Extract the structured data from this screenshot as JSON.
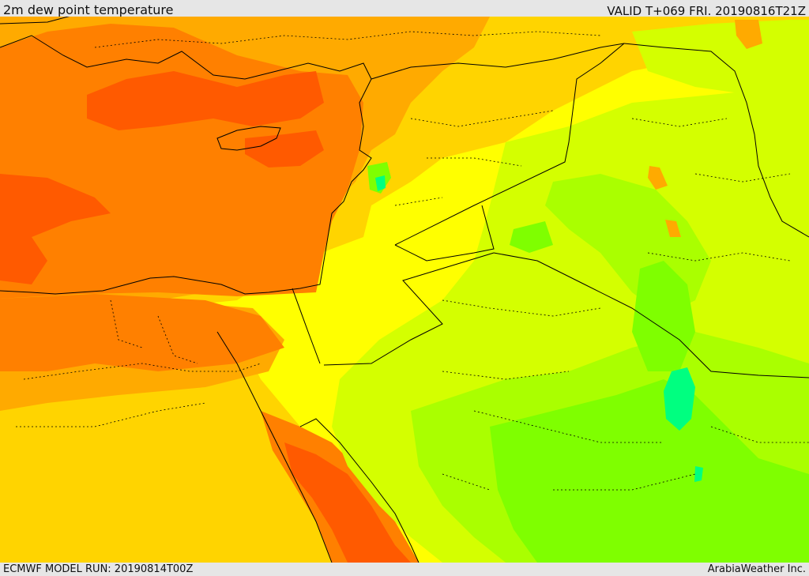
{
  "header": {
    "title": "2m dew point temperature",
    "valid": "VALID T+069 FRI. 20190816T21Z"
  },
  "footer": {
    "model_run": "ECMWF MODEL RUN: 20190814T00Z",
    "credit": "ArabiaWeather Inc."
  },
  "palette": {
    "deep_red_orange": "#ff5a00",
    "orange": "#ff8000",
    "light_orange": "#ffaa00",
    "amber": "#ffd400",
    "yellow": "#ffff00",
    "yellow_green": "#d4ff00",
    "lime": "#aaff00",
    "green": "#7fff00",
    "bright_green": "#00ff80",
    "border_line": "#000000"
  }
}
